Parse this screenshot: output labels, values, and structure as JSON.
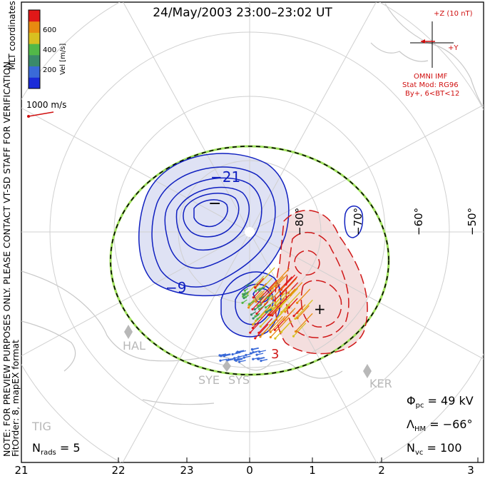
{
  "title": "24/May/2003 23:00–23:02 UT",
  "colorbar": {
    "ticks": [
      "600",
      "400",
      "200"
    ],
    "unit_label": "Vel [m/s]",
    "colors": [
      "#1a2ad8",
      "#3a6ad8",
      "#3a8a6a",
      "#52b848",
      "#d8c020",
      "#e88a10",
      "#e01818"
    ]
  },
  "coordinates_label": "MLT coordinates",
  "vector_scale": "1000 m/s",
  "note_text": "NOTE: FOR PREVIEW PURPOSES ONLY. PLEASE CONTACT VT-SD STAFF FOR VERIFICATION.",
  "fit_order_text": "FitOrder: 8, mapEX format",
  "imf": {
    "z_label": "+Z (10 nT)",
    "y_label": "+Y",
    "source": "OMNI IMF",
    "model_line1": "Stat Mod: RG96",
    "model_line2": "By+, 6<BT<12"
  },
  "stats": {
    "phi_pc_label": "Φ",
    "phi_pc_sub": "pc",
    "phi_pc_value": "= 49 kV",
    "lambda_label": "Λ",
    "lambda_sub": "HM",
    "lambda_value": "= −66°",
    "nrads_label": "N",
    "nrads_sub": "rads",
    "nrads_value": "= 5",
    "nvc_label": "N",
    "nvc_sub": "vc",
    "nvc_value": "= 100"
  },
  "mlt_labels": [
    "21",
    "22",
    "23",
    "0",
    "1",
    "2",
    "3"
  ],
  "lat_labels": [
    "−50°",
    "−60°",
    "−70°",
    "−80°"
  ],
  "contour_labels": [
    "−21",
    "−9",
    "3"
  ],
  "stations": [
    "HAL",
    "SYE",
    "SYS",
    "KER",
    "TIG"
  ],
  "potential": {
    "min_marker": "−",
    "max_marker": "+"
  }
}
